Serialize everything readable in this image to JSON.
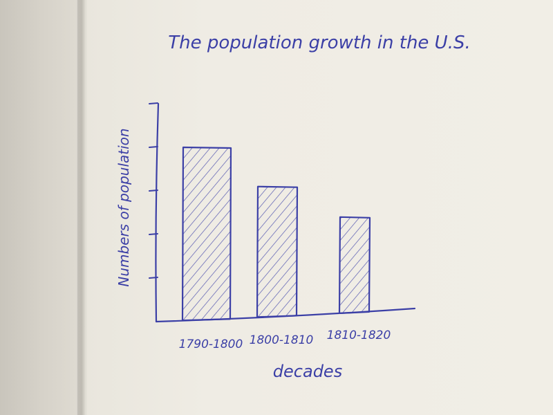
{
  "colors": {
    "ink": "#3b3fa6",
    "paper": "#f1eee6"
  },
  "chart_data": {
    "type": "bar",
    "title": "The population growth in the U.S.",
    "xlabel": "decades",
    "ylabel": "Numbers of population",
    "categories": [
      "1790-1800",
      "1800-1810",
      "1810-1820"
    ],
    "values": [
      4,
      3.1,
      2.4
    ],
    "ylim": [
      0,
      5
    ],
    "grid": false,
    "fill_pattern": "hatched"
  }
}
